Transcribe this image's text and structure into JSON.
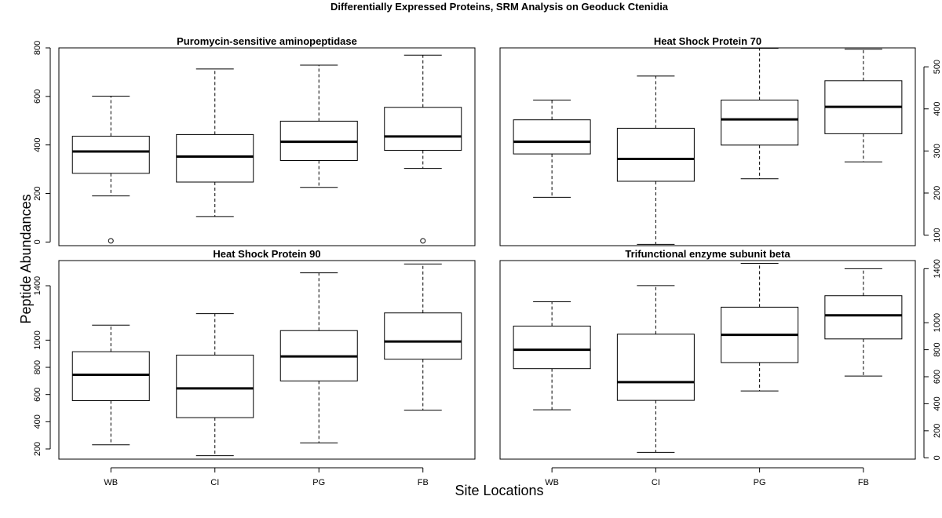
{
  "chart_title": "Differentially Expressed Proteins, SRM Analysis on Geoduck Ctenidia",
  "xlabel": "Site Locations",
  "ylabel": "Peptide Abundances",
  "chart_data": [
    {
      "type": "boxplot",
      "title": "Puromycin-sensitive aminopeptidase",
      "categories": [
        "WB",
        "CI",
        "PG",
        "FB"
      ],
      "ylim": [
        -15,
        800
      ],
      "yticks": [
        0,
        200,
        400,
        600,
        800
      ],
      "yaxis_side": "left",
      "boxes": [
        {
          "min": 190,
          "q1": 283,
          "median": 373,
          "q3": 436,
          "max": 601,
          "outliers": [
            5
          ]
        },
        {
          "min": 105,
          "q1": 247,
          "median": 352,
          "q3": 443,
          "max": 713,
          "outliers": []
        },
        {
          "min": 225,
          "q1": 336,
          "median": 413,
          "q3": 498,
          "max": 729,
          "outliers": []
        },
        {
          "min": 303,
          "q1": 378,
          "median": 435,
          "q3": 555,
          "max": 770,
          "outliers": [
            5
          ]
        }
      ]
    },
    {
      "type": "boxplot",
      "title": "Heat Shock Protein 70",
      "categories": [
        "WB",
        "CI",
        "PG",
        "FB"
      ],
      "ylim": [
        75,
        545
      ],
      "yticks": [
        100,
        200,
        300,
        400,
        500
      ],
      "yaxis_side": "right",
      "boxes": [
        {
          "min": 190,
          "q1": 293,
          "median": 322,
          "q3": 374,
          "max": 421,
          "outliers": []
        },
        {
          "min": 78,
          "q1": 228,
          "median": 281,
          "q3": 354,
          "max": 478,
          "outliers": []
        },
        {
          "min": 234,
          "q1": 314,
          "median": 375,
          "q3": 421,
          "max": 544,
          "outliers": []
        },
        {
          "min": 274,
          "q1": 341,
          "median": 405,
          "q3": 467,
          "max": 542,
          "outliers": []
        }
      ]
    },
    {
      "type": "boxplot",
      "title": "Heat Shock Protein 90",
      "categories": [
        "WB",
        "CI",
        "PG",
        "FB"
      ],
      "ylim": [
        125,
        1585
      ],
      "yticks": [
        200,
        400,
        600,
        800,
        1000,
        1400
      ],
      "yaxis_side": "left",
      "boxes": [
        {
          "min": 230,
          "q1": 555,
          "median": 745,
          "q3": 915,
          "max": 1110,
          "outliers": []
        },
        {
          "min": 150,
          "q1": 430,
          "median": 645,
          "q3": 890,
          "max": 1195,
          "outliers": []
        },
        {
          "min": 245,
          "q1": 700,
          "median": 880,
          "q3": 1070,
          "max": 1495,
          "outliers": []
        },
        {
          "min": 485,
          "q1": 860,
          "median": 990,
          "q3": 1200,
          "max": 1560,
          "outliers": []
        }
      ]
    },
    {
      "type": "boxplot",
      "title": "Trifunctional enzyme subunit beta",
      "categories": [
        "WB",
        "CI",
        "PG",
        "FB"
      ],
      "ylim": [
        -10,
        1460
      ],
      "yticks": [
        0,
        200,
        400,
        600,
        800,
        1000,
        1400
      ],
      "yaxis_side": "right",
      "boxes": [
        {
          "min": 355,
          "q1": 660,
          "median": 800,
          "q3": 975,
          "max": 1155,
          "outliers": []
        },
        {
          "min": 40,
          "q1": 425,
          "median": 560,
          "q3": 915,
          "max": 1275,
          "outliers": []
        },
        {
          "min": 495,
          "q1": 705,
          "median": 910,
          "q3": 1115,
          "max": 1440,
          "outliers": []
        },
        {
          "min": 605,
          "q1": 880,
          "median": 1055,
          "q3": 1200,
          "max": 1400,
          "outliers": []
        }
      ]
    }
  ]
}
